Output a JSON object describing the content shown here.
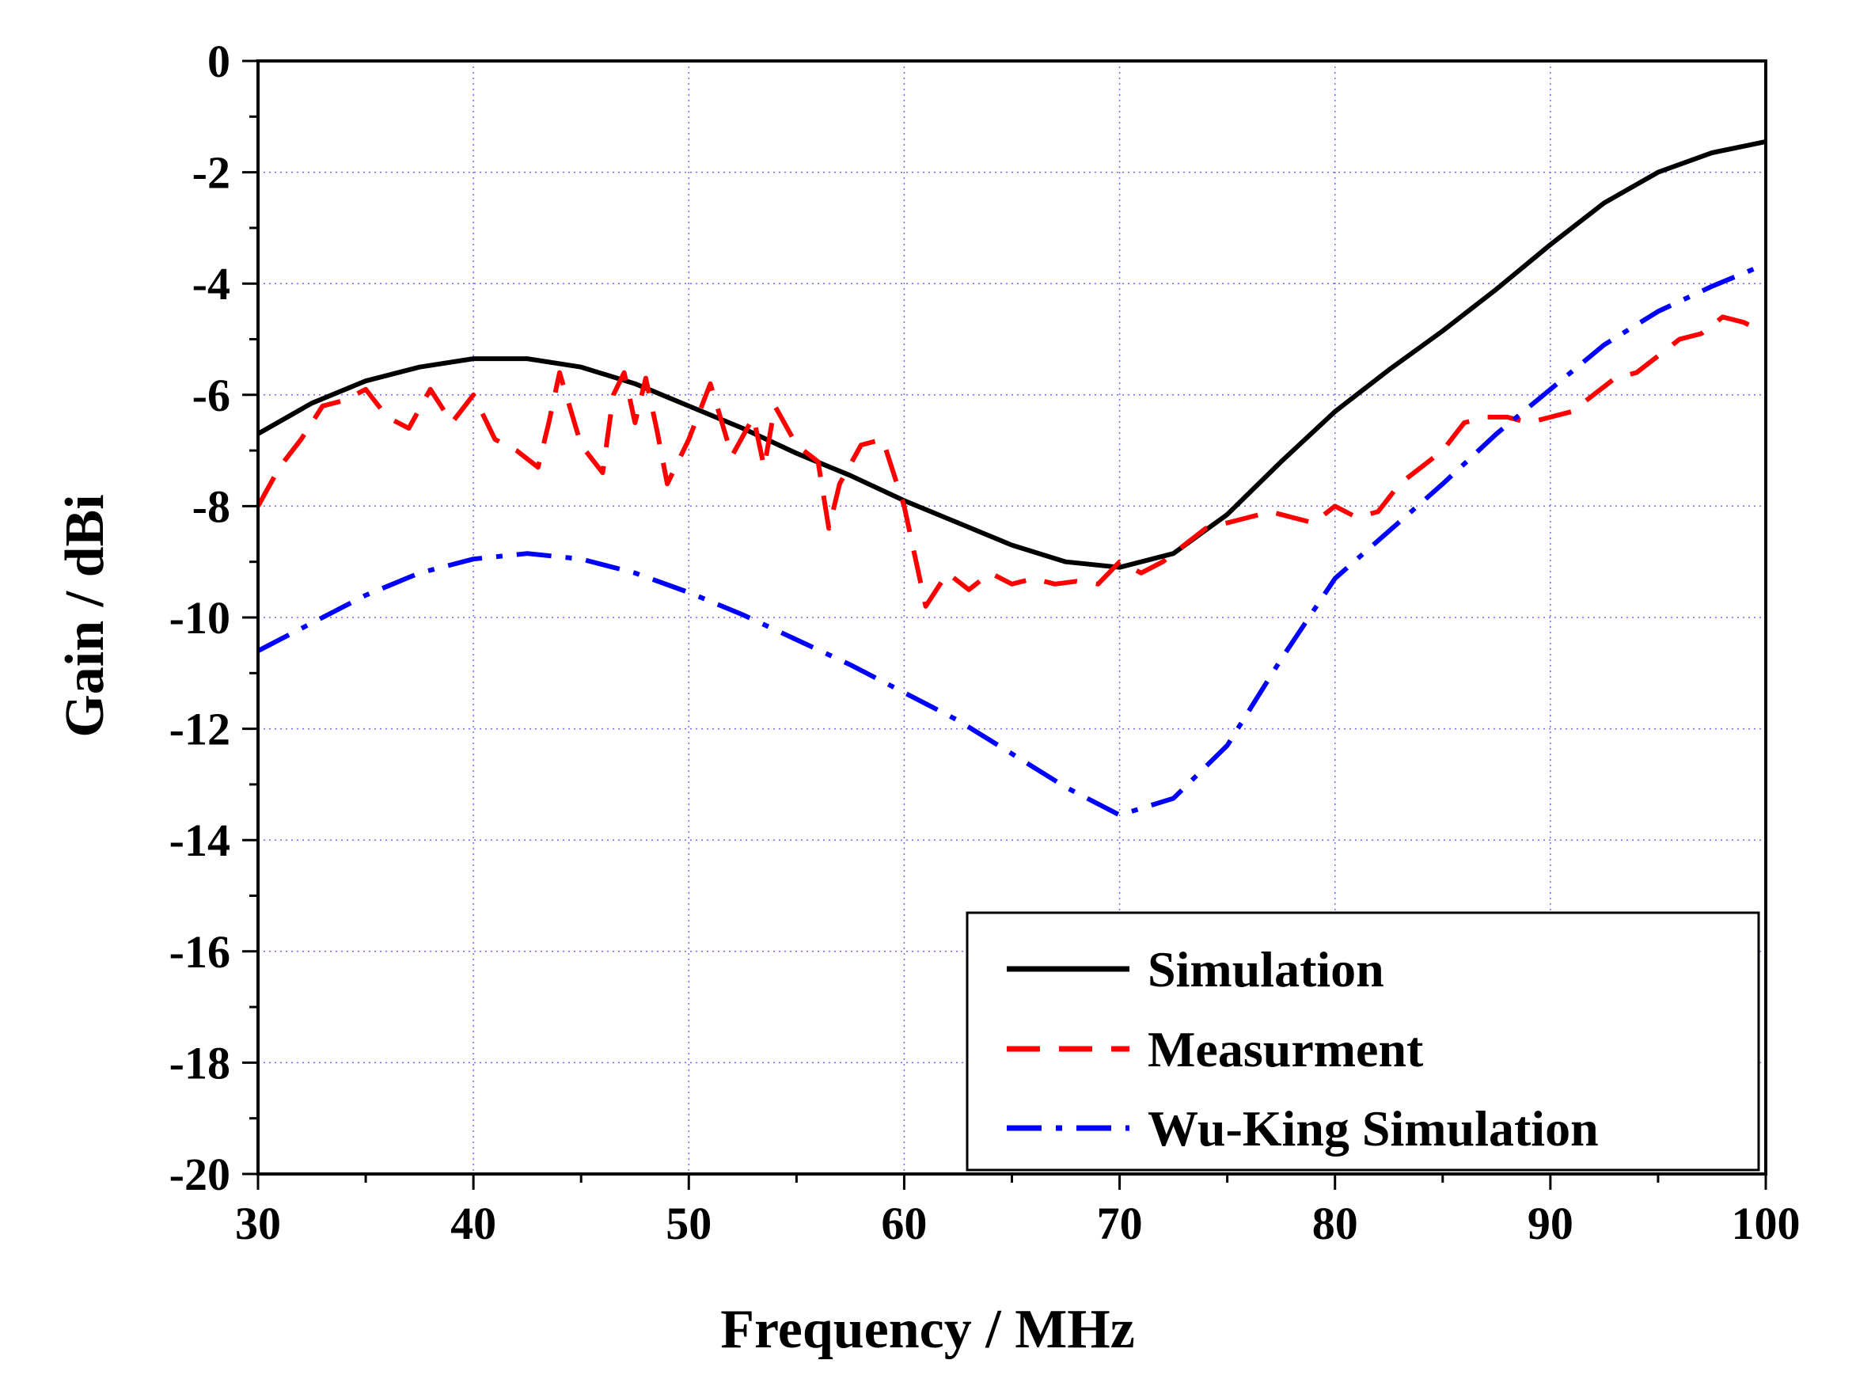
{
  "chart_data": {
    "type": "line",
    "title": "",
    "xlabel": "Frequency / MHz",
    "ylabel": "Gain / dBi",
    "xlim": [
      30,
      100
    ],
    "ylim": [
      -20,
      0
    ],
    "x_ticks": [
      30,
      40,
      50,
      60,
      70,
      80,
      90,
      100
    ],
    "x_tick_labels": [
      "30",
      "40",
      "50",
      "60",
      "70",
      "80",
      "90",
      "100"
    ],
    "y_ticks": [
      0,
      -2,
      -4,
      -6,
      -8,
      -10,
      -12,
      -14,
      -16,
      -18,
      -20
    ],
    "y_tick_labels": [
      "0",
      "-2",
      "-4",
      "-6",
      "-8",
      "-10",
      "-12",
      "-14",
      "-16",
      "-18",
      "-20"
    ],
    "grid": true,
    "legend_position": "bottom-right",
    "series": [
      {
        "name": "Simulation",
        "color": "#000000",
        "style": "solid",
        "x": [
          30,
          32.5,
          35,
          37.5,
          40,
          42.5,
          45,
          47.5,
          50,
          52.5,
          55,
          57.5,
          60,
          62.5,
          65,
          67.5,
          70,
          72.5,
          75,
          77.5,
          80,
          82.5,
          85,
          87.5,
          90,
          92.5,
          95,
          97.5,
          100
        ],
        "y": [
          -6.7,
          -6.15,
          -5.75,
          -5.5,
          -5.35,
          -5.35,
          -5.5,
          -5.8,
          -6.2,
          -6.6,
          -7.05,
          -7.45,
          -7.9,
          -8.3,
          -8.7,
          -9.0,
          -9.1,
          -8.85,
          -8.15,
          -7.2,
          -6.3,
          -5.55,
          -4.85,
          -4.1,
          -3.3,
          -2.55,
          -2.0,
          -1.65,
          -1.45
        ]
      },
      {
        "name": "Measurment",
        "color": "#ff0000",
        "style": "dashed",
        "x": [
          30,
          31,
          32,
          33,
          34,
          35,
          36,
          37,
          38,
          39,
          40,
          41,
          42,
          43,
          43.5,
          44,
          45,
          46,
          46.5,
          47,
          47.5,
          48,
          48.5,
          49,
          50,
          51,
          52,
          53,
          53.5,
          54,
          55,
          56,
          56.5,
          57,
          58,
          59,
          60,
          61,
          62,
          63,
          64,
          65,
          66,
          67,
          68,
          69,
          70,
          71,
          72,
          73,
          74,
          75,
          76,
          77,
          78,
          79,
          80,
          81,
          82,
          83,
          84,
          85,
          86,
          87,
          88,
          89,
          90,
          91,
          92,
          93,
          94,
          95,
          96,
          97,
          98,
          99,
          100
        ],
        "y": [
          -8.0,
          -7.3,
          -6.8,
          -6.2,
          -6.1,
          -5.9,
          -6.4,
          -6.6,
          -5.9,
          -6.5,
          -6.0,
          -6.8,
          -7.0,
          -7.3,
          -6.5,
          -5.6,
          -6.9,
          -7.4,
          -6.0,
          -5.6,
          -6.5,
          -5.7,
          -6.6,
          -7.6,
          -6.8,
          -5.8,
          -7.1,
          -6.4,
          -7.3,
          -6.2,
          -6.9,
          -7.2,
          -8.4,
          -7.6,
          -6.9,
          -6.8,
          -8.0,
          -9.8,
          -9.2,
          -9.5,
          -9.2,
          -9.4,
          -9.3,
          -9.4,
          -9.35,
          -9.4,
          -9.0,
          -9.2,
          -9.0,
          -8.7,
          -8.4,
          -8.3,
          -8.2,
          -8.1,
          -8.2,
          -8.3,
          -8.0,
          -8.2,
          -8.1,
          -7.6,
          -7.3,
          -7.0,
          -6.5,
          -6.4,
          -6.4,
          -6.5,
          -6.4,
          -6.3,
          -6.0,
          -5.7,
          -5.6,
          -5.3,
          -5.0,
          -4.9,
          -4.6,
          -4.7,
          -4.9
        ]
      },
      {
        "name": "Wu-King Simulation",
        "color": "#0000ff",
        "style": "dashdot",
        "x": [
          30,
          32.5,
          35,
          37.5,
          40,
          42.5,
          45,
          47.5,
          50,
          52.5,
          55,
          57.5,
          60,
          62.5,
          65,
          67.5,
          70,
          72.5,
          75,
          77.5,
          80,
          82.5,
          85,
          87.5,
          90,
          92.5,
          95,
          97.5,
          100
        ],
        "y": [
          -10.6,
          -10.1,
          -9.6,
          -9.2,
          -8.95,
          -8.85,
          -8.95,
          -9.2,
          -9.55,
          -9.95,
          -10.4,
          -10.85,
          -11.35,
          -11.85,
          -12.45,
          -13.05,
          -13.55,
          -13.25,
          -12.3,
          -10.75,
          -9.3,
          -8.45,
          -7.6,
          -6.7,
          -5.9,
          -5.1,
          -4.5,
          -4.05,
          -3.65
        ]
      }
    ]
  }
}
